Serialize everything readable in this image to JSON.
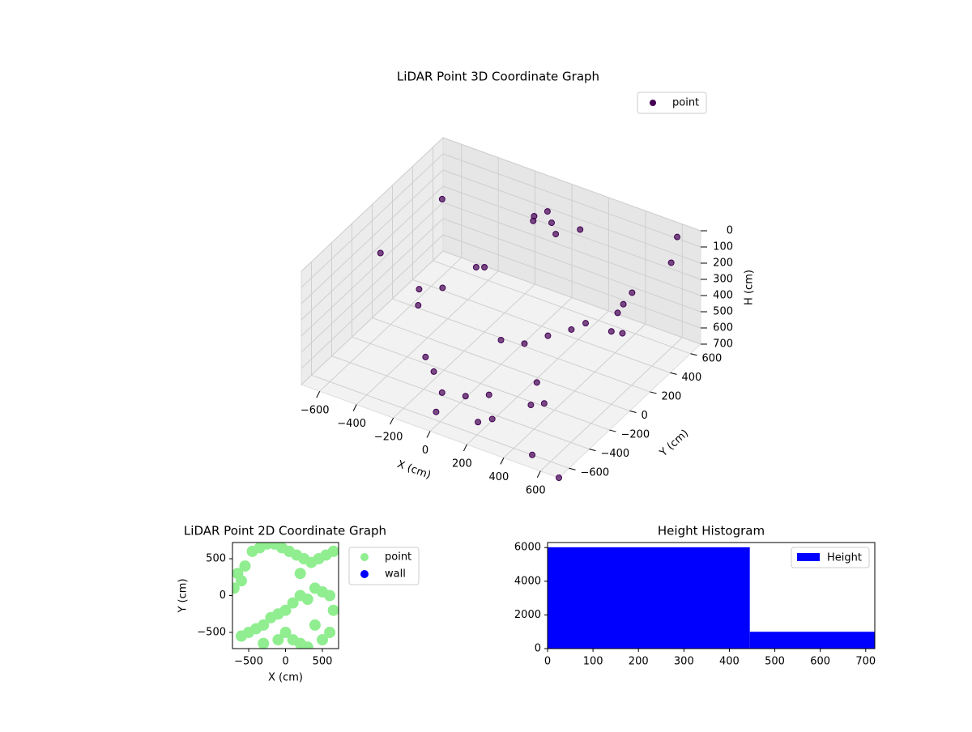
{
  "chart_data": [
    {
      "type": "scatter3d",
      "title": "LiDAR Point 3D Coordinate Graph",
      "xlabel": "X (cm)",
      "ylabel": "Y (cm)",
      "zlabel": "H (cm)",
      "xlim": [
        -700,
        700
      ],
      "ylim": [
        -700,
        700
      ],
      "zlim": [
        0,
        700
      ],
      "z_inverted": true,
      "xticks": [
        {
          "value": -600,
          "label": "−600"
        },
        {
          "value": -400,
          "label": "−400"
        },
        {
          "value": -200,
          "label": "−200"
        },
        0,
        200,
        400,
        600
      ],
      "yticks": [
        {
          "value": -600,
          "label": "−600"
        },
        {
          "value": -400,
          "label": "−400"
        },
        {
          "value": -200,
          "label": "−200"
        },
        0,
        200,
        400,
        600
      ],
      "zticks": [
        0,
        100,
        200,
        300,
        400,
        500,
        600,
        700
      ],
      "legend": "upper right",
      "grid": true,
      "series": [
        {
          "name": "point",
          "color": "#440154",
          "x": [
            -100,
            0,
            -50,
            50,
            -150,
            100,
            500,
            520,
            480,
            550,
            -200,
            -100,
            0,
            100,
            200,
            -300,
            300,
            150,
            -50,
            250,
            -500,
            -450,
            -400,
            200,
            300,
            350,
            0,
            100,
            -650,
            -600,
            600,
            650,
            700,
            500,
            -300,
            400,
            -200,
            600
          ],
          "y": [
            500,
            500,
            550,
            450,
            600,
            600,
            300,
            350,
            280,
            200,
            -300,
            -400,
            -350,
            -300,
            -450,
            -200,
            -250,
            -500,
            -550,
            -100,
            100,
            0,
            150,
            100,
            150,
            200,
            0,
            50,
            600,
            -100,
            650,
            500,
            -700,
            -600,
            300,
            -300,
            200,
            0
          ],
          "z": [
            150,
            120,
            100,
            140,
            200,
            180,
            300,
            250,
            350,
            400,
            650,
            680,
            690,
            670,
            690,
            660,
            680,
            700,
            690,
            650,
            500,
            520,
            480,
            500,
            450,
            420,
            550,
            560,
            300,
            200,
            50,
            100,
            700,
            700,
            400,
            600,
            300,
            250
          ]
        }
      ]
    },
    {
      "type": "scatter",
      "title": "LiDAR Point 2D Coordinate Graph",
      "xlabel": "X (cm)",
      "ylabel": "Y (cm)",
      "xlim": [
        -720,
        720
      ],
      "ylim": [
        -720,
        720
      ],
      "xticks": [
        {
          "value": -500,
          "label": "−500"
        },
        0,
        500
      ],
      "yticks": [
        {
          "value": -500,
          "label": "−500"
        },
        0,
        500
      ],
      "legend": "outside right",
      "series": [
        {
          "name": "point",
          "color": "#90ee90",
          "x": [
            -600,
            -500,
            -400,
            -300,
            -200,
            -100,
            0,
            100,
            200,
            300,
            400,
            500,
            600,
            650,
            -650,
            -550,
            -450,
            -350,
            -250,
            -150,
            -50,
            50,
            150,
            250,
            350,
            450,
            550,
            650,
            100,
            200,
            300,
            -100,
            0,
            400,
            500,
            -600,
            -700,
            600,
            200,
            -300
          ],
          "y": [
            -550,
            -500,
            -450,
            -400,
            -300,
            -250,
            -200,
            -100,
            0,
            -50,
            100,
            50,
            0,
            -200,
            300,
            400,
            600,
            650,
            700,
            700,
            650,
            600,
            550,
            500,
            450,
            500,
            550,
            600,
            -600,
            -650,
            -700,
            -600,
            -500,
            -400,
            -600,
            200,
            100,
            -500,
            300,
            -650
          ],
          "marker_size": 7
        },
        {
          "name": "wall",
          "color": "#0000ff",
          "x": [],
          "y": []
        }
      ]
    },
    {
      "type": "histogram",
      "title": "Height Histogram",
      "bins": [
        0,
        445,
        720
      ],
      "counts": [
        6020,
        1000
      ],
      "xlim": [
        0,
        720
      ],
      "ylim": [
        0,
        6300
      ],
      "xticks": [
        0,
        100,
        200,
        300,
        400,
        500,
        600,
        700
      ],
      "yticks": [
        0,
        2000,
        4000,
        6000
      ],
      "legend": "upper right",
      "series": [
        {
          "name": "Height",
          "color": "#0000ff"
        }
      ]
    }
  ]
}
